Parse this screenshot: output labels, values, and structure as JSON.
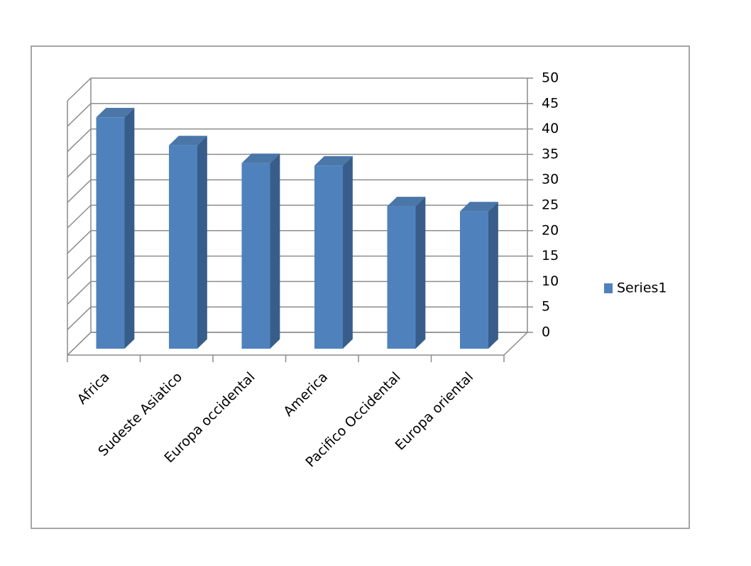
{
  "chart_data": {
    "type": "bar",
    "categories": [
      "Africa",
      "Sudeste Asiatico",
      "Europa occidental",
      "America",
      "Pacifico Occidental",
      "Europa oriental"
    ],
    "series": [
      {
        "name": "Series1",
        "color": "#4f81bd",
        "values": [
          45.5,
          40,
          36.5,
          36,
          28,
          27
        ]
      }
    ],
    "ylim": [
      0,
      50
    ],
    "yticks": [
      0,
      5,
      10,
      15,
      20,
      25,
      30,
      35,
      40,
      45,
      50
    ],
    "grid": true,
    "legend": "right"
  }
}
